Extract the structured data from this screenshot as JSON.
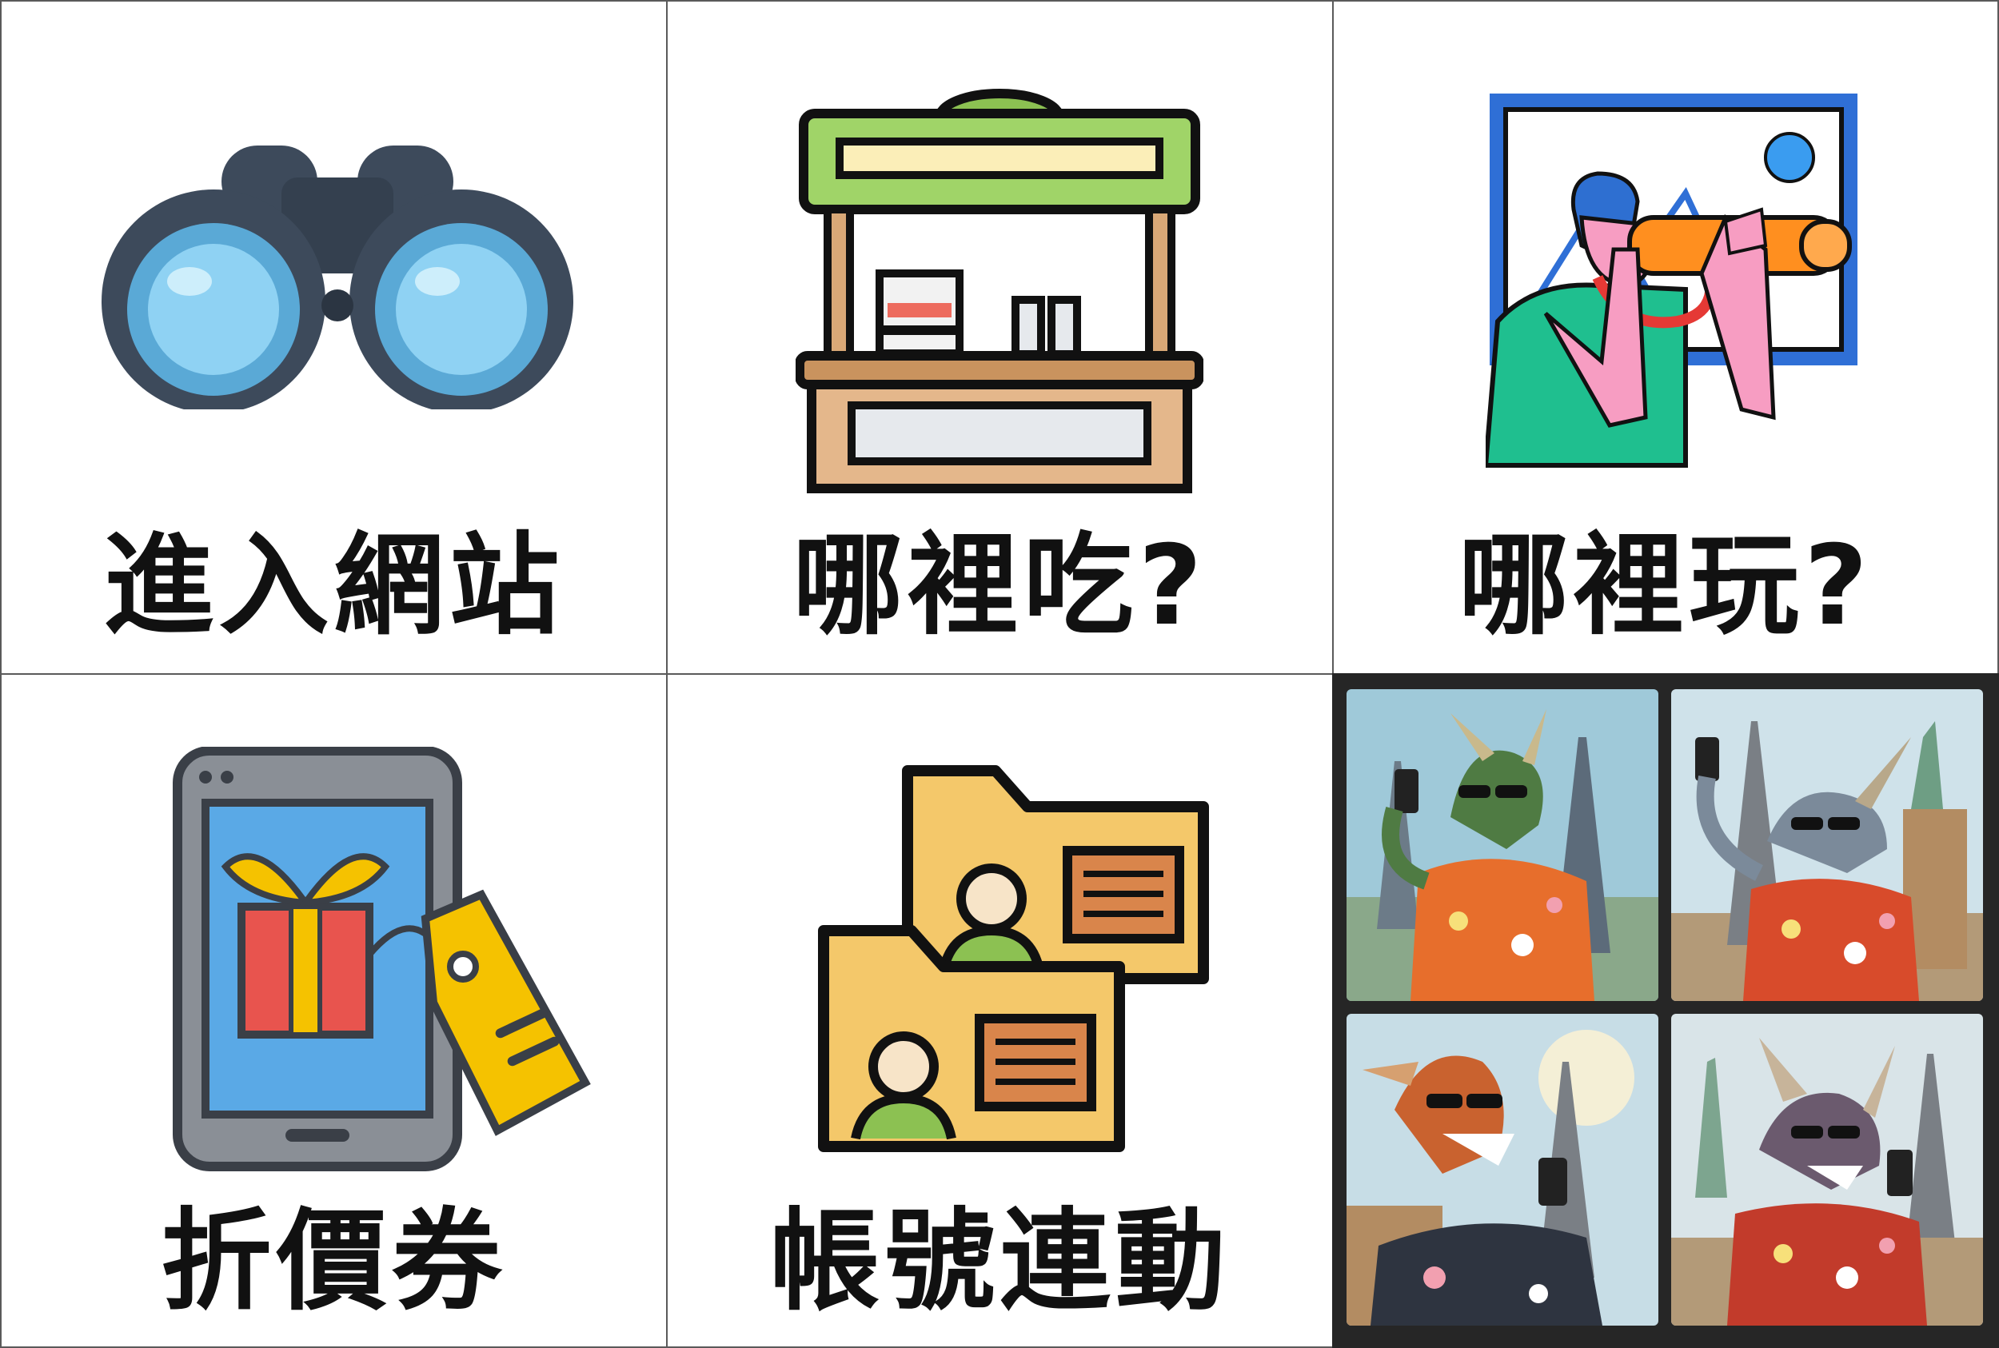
{
  "menu": {
    "items": [
      {
        "label": "進入網站",
        "icon": "binoculars-icon"
      },
      {
        "label": "哪裡吃?",
        "icon": "food-stall-icon"
      },
      {
        "label": "哪裡玩?",
        "icon": "sightseeing-camera-icon"
      },
      {
        "label": "折價券",
        "icon": "coupon-phone-icon"
      },
      {
        "label": "帳號連動",
        "icon": "account-cards-icon"
      }
    ],
    "gallery": {
      "icon": "dragon-selfie-photos",
      "photos": [
        "dragon-selfie-1",
        "dragon-selfie-2",
        "dragon-selfie-3",
        "dragon-selfie-4"
      ]
    }
  },
  "colors": {
    "text": "#111111",
    "border": "#5a5a5a",
    "gallery_bg": "#262626"
  }
}
